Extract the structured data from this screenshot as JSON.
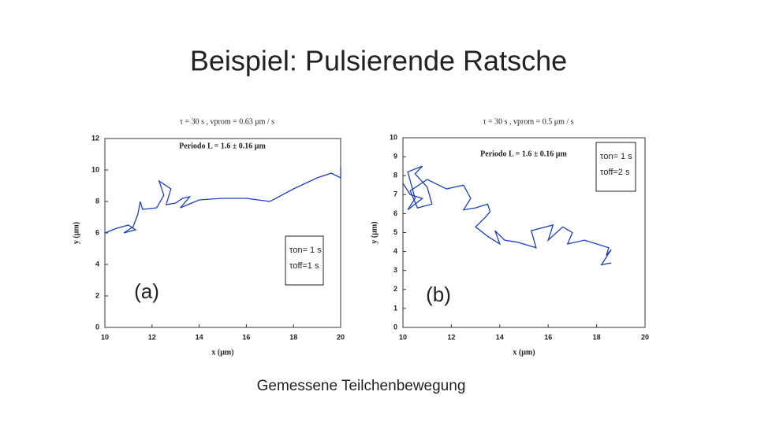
{
  "title": "Beispiel: Pulsierende Ratsche",
  "caption": "Gemessene Teilchenbewegung",
  "chart_data": [
    {
      "type": "line",
      "header": "τ = 30 s , vprom = 0.63 μm / s",
      "annotation": "Periodo L = 1.6 ± 0.16 μm",
      "box_lines": [
        "τon= 1 s",
        "τoff=1 s"
      ],
      "panel_label": "(a)",
      "xlabel": "x (μm)",
      "ylabel": "y (μm)",
      "color": "#1f3fbf",
      "xlim": [
        10,
        20
      ],
      "ylim": [
        0,
        12
      ],
      "xticks": [
        10,
        12,
        14,
        16,
        18,
        20
      ],
      "yticks": [
        0,
        2,
        4,
        6,
        8,
        10,
        12
      ],
      "x": [
        10,
        10.5,
        11,
        11.3,
        10.8,
        11.2,
        11.4,
        11.5,
        11.6,
        12.2,
        12.5,
        12.3,
        12.8,
        12.6,
        13,
        13.3,
        13.6,
        13.2,
        14,
        15,
        16,
        17,
        18,
        19,
        19.6,
        20,
        20
      ],
      "values": [
        6,
        6.3,
        6.5,
        6.2,
        6.0,
        6.4,
        7.2,
        8,
        7.5,
        7.6,
        8.4,
        9.3,
        8.8,
        7.8,
        7.9,
        8.2,
        8.3,
        7.6,
        8.1,
        8.2,
        8.2,
        8,
        8.8,
        9.5,
        9.8,
        9.5,
        10.2
      ]
    },
    {
      "type": "line",
      "header": "τ = 30 s , vprom = 0.5 μm / s",
      "annotation": "Periodo L = 1.6 ± 0.16 μm",
      "box_lines": [
        "τon= 1 s",
        "τoff=2 s"
      ],
      "panel_label": "(b)",
      "xlabel": "x (μm)",
      "ylabel": "y (μm)",
      "color": "#1f3fbf",
      "xlim": [
        10,
        20
      ],
      "ylim": [
        0,
        10
      ],
      "xticks": [
        10,
        12,
        14,
        16,
        18,
        20
      ],
      "yticks": [
        0,
        1,
        2,
        3,
        4,
        5,
        6,
        7,
        8,
        9,
        10
      ],
      "x": [
        10,
        10.3,
        10.8,
        10.2,
        10.5,
        10.2,
        10.8,
        10.5,
        11,
        11.2,
        10.6,
        10.3,
        11,
        11.8,
        12.5,
        12.8,
        12.5,
        13,
        13.5,
        13.6,
        13.4,
        13,
        13.5,
        14,
        13.8,
        14.2,
        14.7,
        15.5,
        15.3,
        16.2,
        16,
        16.6,
        17,
        16.8,
        17.5,
        18.5,
        18.4,
        18.6,
        18.2,
        18.6
      ],
      "values": [
        7.6,
        7,
        6.8,
        6.2,
        6.8,
        8.2,
        8.5,
        8.1,
        7.4,
        6.5,
        6.3,
        7.2,
        7.8,
        7.3,
        7.5,
        6.8,
        6.2,
        6.3,
        6.5,
        6.1,
        5.8,
        5.3,
        4.8,
        4.4,
        5.1,
        4.6,
        4.5,
        4.2,
        5.1,
        5.4,
        4.6,
        5.3,
        5.0,
        4.4,
        4.6,
        4.2,
        3.8,
        4.1,
        3.3,
        3.4
      ]
    }
  ]
}
